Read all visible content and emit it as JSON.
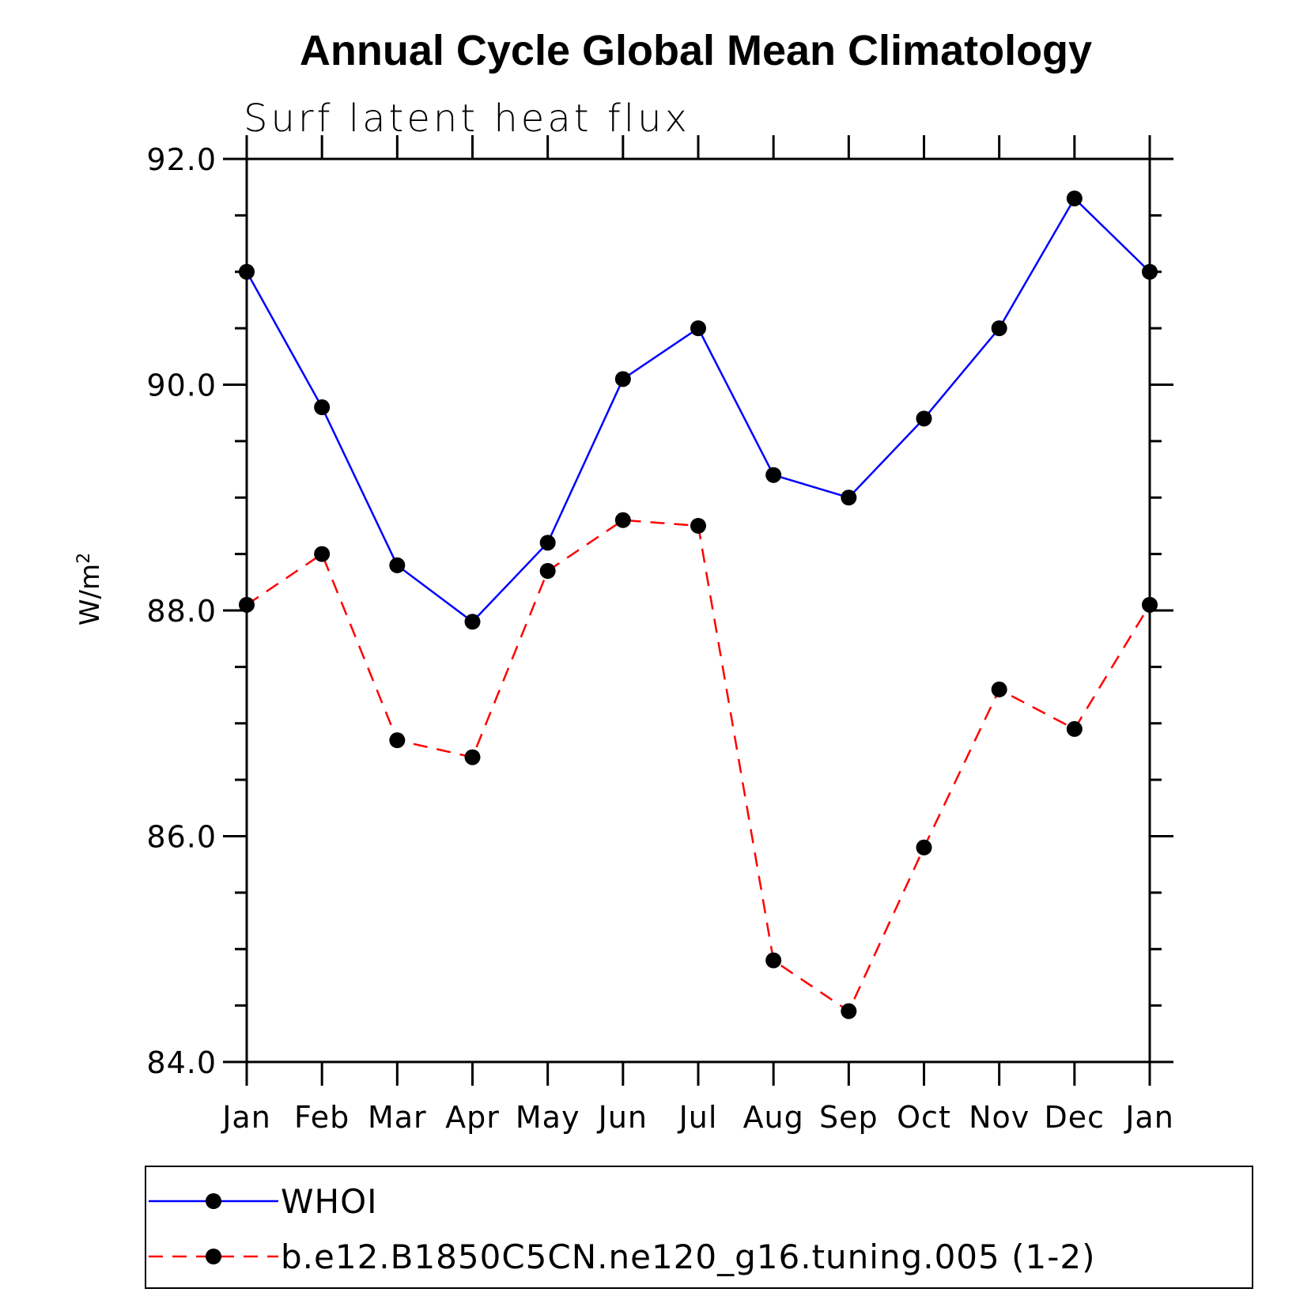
{
  "chart_data": {
    "type": "line",
    "title": "Annual Cycle Global Mean Climatology",
    "subtitle": "Surf latent heat flux",
    "ylabel": "W/m",
    "ylabel_superscript": "2",
    "xlabel": "",
    "ylim": [
      84.0,
      92.0
    ],
    "y_major_ticks": [
      "84.0",
      "86.0",
      "88.0",
      "90.0",
      "92.0"
    ],
    "categories": [
      "Jan",
      "Feb",
      "Mar",
      "Apr",
      "May",
      "Jun",
      "Jul",
      "Aug",
      "Sep",
      "Oct",
      "Nov",
      "Dec",
      "Jan"
    ],
    "series": [
      {
        "name": "WHOI",
        "color": "#0000ff",
        "dash": "solid",
        "values": [
          91.0,
          89.8,
          88.4,
          87.9,
          88.6,
          90.05,
          90.5,
          89.2,
          89.0,
          89.7,
          90.5,
          91.65,
          91.0
        ]
      },
      {
        "name": "b.e12.B1850C5CN.ne120_g16.tuning.005 (1-2)",
        "color": "#ff0000",
        "dash": "dashed",
        "values": [
          88.05,
          88.5,
          86.85,
          86.7,
          88.35,
          88.8,
          88.75,
          84.9,
          84.45,
          85.9,
          87.3,
          86.95,
          88.05
        ]
      }
    ],
    "grid": false,
    "legend_position": "bottom"
  }
}
